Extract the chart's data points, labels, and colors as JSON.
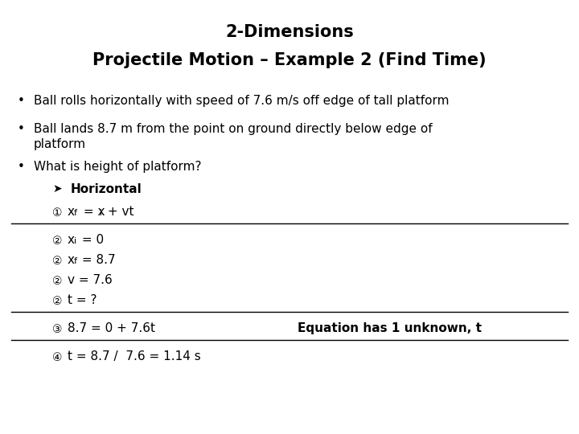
{
  "title_line1": "2-Dimensions",
  "title_line2": "Projectile Motion – Example 2 (Find Time)",
  "background_color": "#ffffff",
  "text_color": "#000000",
  "bullet1": "Ball rolls horizontally with speed of 7.6 m/s off edge of tall platform",
  "bullet2_line1": "Ball lands 8.7 m from the point on ground directly below edge of",
  "bullet2_line2": "platform",
  "bullet3": "What is height of platform?",
  "arrow_label": "Horizontal",
  "line6_right": "Equation has 1 unknown, t",
  "title_fontsize": 15,
  "body_fontsize": 11,
  "circle_fontsize": 10
}
